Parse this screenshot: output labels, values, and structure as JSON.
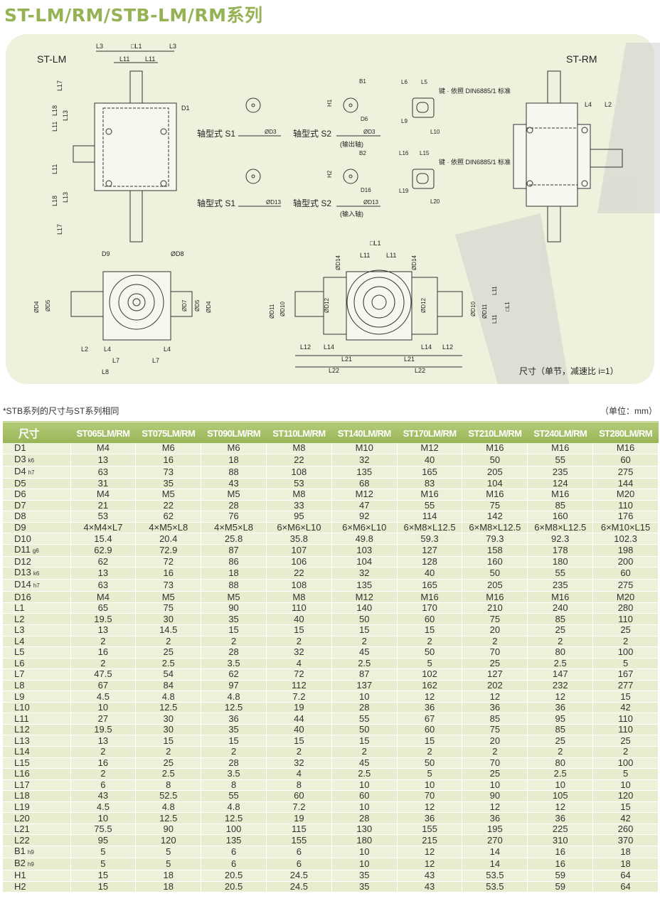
{
  "title": "ST-LM/RM/STB-LM/RM系列",
  "drawing": {
    "view_left_label": "ST-LM",
    "view_right_label": "ST-RM",
    "shaft_type_s1": "轴型式  S1",
    "shaft_type_s2": "轴型式  S2",
    "output_shaft": "(输出轴)",
    "input_shaft": "(输入轴)",
    "key_note": "键 · 依照 DIN6885/1 标准",
    "caption": "尺寸（单节，减速比 i=1）",
    "labels": {
      "L1": "□L1",
      "L2": "L2",
      "L3": "L3",
      "L4": "L4",
      "L5": "L5",
      "L6": "L6",
      "L7": "L7",
      "L8": "L8",
      "L9": "L9",
      "L10": "L10",
      "L11": "L11",
      "L12": "L12",
      "L13": "L13",
      "L14": "L14",
      "L15": "L15",
      "L16": "L16",
      "L17": "L17",
      "L18": "L18",
      "L19": "L19",
      "L20": "L20",
      "L21": "L21",
      "L22": "L22",
      "D1": "D1",
      "D3": "ØD3",
      "D4": "ØD4",
      "D5": "ØD5",
      "D6": "D6",
      "D7": "ØD7",
      "D8": "ØD8",
      "D9": "D9",
      "D10": "ØD10",
      "D11": "ØD11",
      "D12": "ØD12",
      "D13": "ØD13",
      "D14": "ØD14",
      "D16": "D16",
      "B1": "B1",
      "B2": "B2",
      "H1": "H1",
      "H2": "H2"
    }
  },
  "note": "*STB系列的尺寸与ST系列相同",
  "unit": "（单位：mm）",
  "table": {
    "headers": [
      "尺寸",
      "ST065LM/RM",
      "ST075LM/RM",
      "ST090LM/RM",
      "ST110LM/RM",
      "ST140LM/RM",
      "ST170LM/RM",
      "ST210LM/RM",
      "ST240LM/RM",
      "ST280LM/RM"
    ],
    "rows": [
      {
        "name": "D1",
        "tol": "",
        "values": [
          "M4",
          "M6",
          "M6",
          "M8",
          "M10",
          "M12",
          "M16",
          "M16",
          "M16"
        ]
      },
      {
        "name": "D3",
        "tol": "k6",
        "values": [
          "13",
          "16",
          "18",
          "22",
          "32",
          "40",
          "50",
          "55",
          "60"
        ]
      },
      {
        "name": "D4",
        "tol": "h7",
        "values": [
          "63",
          "73",
          "88",
          "108",
          "135",
          "165",
          "205",
          "235",
          "275"
        ]
      },
      {
        "name": "D5",
        "tol": "",
        "values": [
          "31",
          "35",
          "43",
          "53",
          "68",
          "83",
          "104",
          "124",
          "144"
        ]
      },
      {
        "name": "D6",
        "tol": "",
        "values": [
          "M4",
          "M5",
          "M5",
          "M8",
          "M12",
          "M16",
          "M16",
          "M16",
          "M20"
        ]
      },
      {
        "name": "D7",
        "tol": "",
        "values": [
          "21",
          "22",
          "28",
          "33",
          "47",
          "55",
          "75",
          "85",
          "110"
        ]
      },
      {
        "name": "D8",
        "tol": "",
        "values": [
          "53",
          "62",
          "76",
          "95",
          "92",
          "114",
          "142",
          "160",
          "176"
        ]
      },
      {
        "name": "D9",
        "tol": "",
        "values": [
          "4×M4×L7",
          "4×M5×L8",
          "4×M5×L8",
          "6×M6×L10",
          "6×M6×L10",
          "6×M8×L12.5",
          "6×M8×L12.5",
          "6×M8×L12.5",
          "6×M10×L15"
        ]
      },
      {
        "name": "D10",
        "tol": "",
        "values": [
          "15.4",
          "20.4",
          "25.8",
          "35.8",
          "49.8",
          "59.3",
          "79.3",
          "92.3",
          "102.3"
        ]
      },
      {
        "name": "D11",
        "tol": "g6",
        "values": [
          "62.9",
          "72.9",
          "87",
          "107",
          "103",
          "127",
          "158",
          "178",
          "198"
        ]
      },
      {
        "name": "D12",
        "tol": "",
        "values": [
          "62",
          "72",
          "86",
          "106",
          "104",
          "128",
          "160",
          "180",
          "200"
        ]
      },
      {
        "name": "D13",
        "tol": "k6",
        "values": [
          "13",
          "16",
          "18",
          "22",
          "32",
          "40",
          "50",
          "55",
          "60"
        ]
      },
      {
        "name": "D14",
        "tol": "h7",
        "values": [
          "63",
          "73",
          "88",
          "108",
          "135",
          "165",
          "205",
          "235",
          "275"
        ]
      },
      {
        "name": "D16",
        "tol": "",
        "values": [
          "M4",
          "M5",
          "M5",
          "M8",
          "M12",
          "M16",
          "M16",
          "M16",
          "M20"
        ]
      },
      {
        "name": "L1",
        "tol": "",
        "values": [
          "65",
          "75",
          "90",
          "110",
          "140",
          "170",
          "210",
          "240",
          "280"
        ]
      },
      {
        "name": "L2",
        "tol": "",
        "values": [
          "19.5",
          "30",
          "35",
          "40",
          "50",
          "60",
          "75",
          "85",
          "110"
        ]
      },
      {
        "name": "L3",
        "tol": "",
        "values": [
          "13",
          "14.5",
          "15",
          "15",
          "15",
          "15",
          "20",
          "25",
          "25"
        ]
      },
      {
        "name": "L4",
        "tol": "",
        "values": [
          "2",
          "2",
          "2",
          "2",
          "2",
          "2",
          "2",
          "2",
          "2"
        ]
      },
      {
        "name": "L5",
        "tol": "",
        "values": [
          "16",
          "25",
          "28",
          "32",
          "45",
          "50",
          "70",
          "80",
          "100"
        ]
      },
      {
        "name": "L6",
        "tol": "",
        "values": [
          "2",
          "2.5",
          "3.5",
          "4",
          "2.5",
          "5",
          "25",
          "2.5",
          "5"
        ]
      },
      {
        "name": "L7",
        "tol": "",
        "values": [
          "47.5",
          "54",
          "62",
          "72",
          "87",
          "102",
          "127",
          "147",
          "167"
        ]
      },
      {
        "name": "L8",
        "tol": "",
        "values": [
          "67",
          "84",
          "97",
          "112",
          "137",
          "162",
          "202",
          "232",
          "277"
        ]
      },
      {
        "name": "L9",
        "tol": "",
        "values": [
          "4.5",
          "4.8",
          "4.8",
          "7.2",
          "10",
          "12",
          "12",
          "12",
          "15"
        ]
      },
      {
        "name": "L10",
        "tol": "",
        "values": [
          "10",
          "12.5",
          "12.5",
          "19",
          "28",
          "36",
          "36",
          "36",
          "42"
        ]
      },
      {
        "name": "L11",
        "tol": "",
        "values": [
          "27",
          "30",
          "36",
          "44",
          "55",
          "67",
          "85",
          "95",
          "110"
        ]
      },
      {
        "name": "L12",
        "tol": "",
        "values": [
          "19.5",
          "30",
          "35",
          "40",
          "50",
          "60",
          "75",
          "85",
          "110"
        ]
      },
      {
        "name": "L13",
        "tol": "",
        "values": [
          "13",
          "15",
          "15",
          "15",
          "15",
          "15",
          "20",
          "25",
          "25"
        ]
      },
      {
        "name": "L14",
        "tol": "",
        "values": [
          "2",
          "2",
          "2",
          "2",
          "2",
          "2",
          "2",
          "2",
          "2"
        ]
      },
      {
        "name": "L15",
        "tol": "",
        "values": [
          "16",
          "25",
          "28",
          "32",
          "45",
          "50",
          "70",
          "80",
          "100"
        ]
      },
      {
        "name": "L16",
        "tol": "",
        "values": [
          "2",
          "2.5",
          "3.5",
          "4",
          "2.5",
          "5",
          "25",
          "2.5",
          "5"
        ]
      },
      {
        "name": "L17",
        "tol": "",
        "values": [
          "6",
          "8",
          "8",
          "8",
          "10",
          "10",
          "10",
          "10",
          "10"
        ]
      },
      {
        "name": "L18",
        "tol": "",
        "values": [
          "43",
          "52.5",
          "55",
          "60",
          "60",
          "70",
          "90",
          "105",
          "120"
        ]
      },
      {
        "name": "L19",
        "tol": "",
        "values": [
          "4.5",
          "4.8",
          "4.8",
          "7.2",
          "10",
          "12",
          "12",
          "12",
          "15"
        ]
      },
      {
        "name": "L20",
        "tol": "",
        "values": [
          "10",
          "12.5",
          "12.5",
          "19",
          "28",
          "36",
          "36",
          "36",
          "42"
        ]
      },
      {
        "name": "L21",
        "tol": "",
        "values": [
          "75.5",
          "90",
          "100",
          "115",
          "130",
          "155",
          "195",
          "225",
          "260"
        ]
      },
      {
        "name": "L22",
        "tol": "",
        "values": [
          "95",
          "120",
          "135",
          "155",
          "180",
          "215",
          "270",
          "310",
          "370"
        ]
      },
      {
        "name": "B1",
        "tol": "h9",
        "values": [
          "5",
          "5",
          "6",
          "6",
          "10",
          "12",
          "14",
          "16",
          "18"
        ]
      },
      {
        "name": "B2",
        "tol": "h9",
        "values": [
          "5",
          "5",
          "6",
          "6",
          "10",
          "12",
          "14",
          "16",
          "18"
        ]
      },
      {
        "name": "H1",
        "tol": "",
        "values": [
          "15",
          "18",
          "20.5",
          "24.5",
          "35",
          "43",
          "53.5",
          "59",
          "64"
        ]
      },
      {
        "name": "H2",
        "tol": "",
        "values": [
          "15",
          "18",
          "20.5",
          "24.5",
          "35",
          "43",
          "53.5",
          "59",
          "64"
        ]
      }
    ]
  },
  "colors": {
    "title": "#95b254",
    "panel": "#eef2dc",
    "header": "#a4bf62",
    "row": "#eef1da"
  }
}
